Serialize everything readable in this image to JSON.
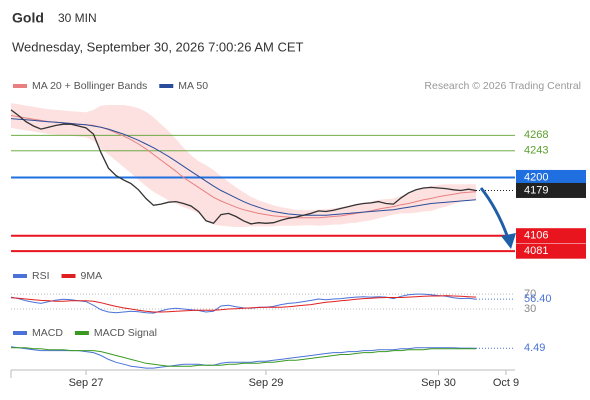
{
  "header": {
    "title": "Gold",
    "interval": "30 MIN",
    "timestamp": "Wednesday, September 30, 2026 7:00:26 AM CET"
  },
  "chart_data": [
    {
      "type": "line",
      "source": "Research © 2026 Trading Central",
      "ylim": [
        4070,
        4325
      ],
      "values": [
        4309,
        4300,
        4290,
        4283,
        4278,
        4281,
        4284,
        4286,
        4286,
        4283,
        4280,
        4270,
        4240,
        4215,
        4203,
        4196,
        4190,
        4180,
        4166,
        4155,
        4157,
        4160,
        4161,
        4158,
        4154,
        4145,
        4130,
        4126,
        4140,
        4142,
        4137,
        4130,
        4125,
        4127,
        4126,
        4127,
        4131,
        4134,
        4136,
        4139,
        4142,
        4146,
        4145,
        4147,
        4150,
        4153,
        4156,
        4158,
        4159,
        4161,
        4158,
        4157,
        4167,
        4175,
        4180,
        4183,
        4184,
        4183,
        4182,
        4180,
        4179,
        4181,
        4179,
        null,
        null,
        null,
        null
      ],
      "series": [
        {
          "name": "MA 20 + Bollinger Bands",
          "color": "#e88080",
          "band_color": "#fde0e0",
          "values": [
            4300,
            4298,
            4296,
            4294,
            4292,
            4290,
            4289,
            4288,
            4287,
            4286,
            4285,
            4284,
            4281,
            4277,
            4272,
            4267,
            4261,
            4254,
            4246,
            4237,
            4228,
            4219,
            4210,
            4200,
            4192,
            4184,
            4176,
            4168,
            4162,
            4157,
            4152,
            4148,
            4145,
            4142,
            4140,
            4138,
            4137,
            4136,
            4135,
            4135,
            4135,
            4135,
            4136,
            4137,
            4138,
            4140,
            4142,
            4144,
            4146,
            4149,
            4151,
            4153,
            4156,
            4158,
            4161,
            4164,
            4166,
            4169,
            4171,
            4173,
            4175,
            4176,
            4177,
            null,
            null,
            null,
            null
          ],
          "upper": [
            4320,
            4318,
            4316,
            4314,
            4312,
            4310,
            4309,
            4308,
            4307,
            4306,
            4305,
            4309,
            4316,
            4317,
            4317,
            4317,
            4315,
            4312,
            4306,
            4297,
            4286,
            4275,
            4262,
            4248,
            4236,
            4226,
            4220,
            4212,
            4202,
            4193,
            4184,
            4176,
            4169,
            4163,
            4159,
            4155,
            4152,
            4150,
            4148,
            4147,
            4147,
            4148,
            4149,
            4150,
            4152,
            4154,
            4157,
            4159,
            4161,
            4164,
            4165,
            4166,
            4170,
            4174,
            4179,
            4183,
            4186,
            4188,
            4189,
            4189,
            4189,
            4189,
            4189,
            null,
            null,
            null,
            null
          ],
          "lower": [
            4280,
            4278,
            4276,
            4274,
            4272,
            4270,
            4269,
            4268,
            4267,
            4266,
            4265,
            4259,
            4246,
            4237,
            4227,
            4217,
            4207,
            4196,
            4186,
            4177,
            4170,
            4163,
            4158,
            4152,
            4148,
            4142,
            4132,
            4124,
            4122,
            4121,
            4120,
            4120,
            4121,
            4121,
            4121,
            4121,
            4122,
            4122,
            4122,
            4123,
            4123,
            4122,
            4123,
            4124,
            4124,
            4126,
            4127,
            4129,
            4131,
            4134,
            4137,
            4140,
            4142,
            4142,
            4143,
            4145,
            4146,
            4150,
            4153,
            4157,
            4161,
            4163,
            4165,
            null,
            null,
            null,
            null
          ]
        },
        {
          "name": "MA 50",
          "color": "#2a4d9b",
          "values": [
            4295,
            4294,
            4293,
            4292,
            4291,
            4290,
            4289,
            4288,
            4287,
            4286,
            4285,
            4283,
            4281,
            4278,
            4274,
            4270,
            4265,
            4260,
            4254,
            4248,
            4241,
            4234,
            4226,
            4218,
            4210,
            4202,
            4194,
            4186,
            4179,
            4173,
            4167,
            4161,
            4156,
            4152,
            4148,
            4145,
            4143,
            4141,
            4140,
            4139,
            4139,
            4139,
            4139,
            4140,
            4141,
            4142,
            4143,
            4144,
            4145,
            4146,
            4147,
            4148,
            4150,
            4152,
            4154,
            4156,
            4158,
            4159,
            4160,
            4161,
            4162,
            4163,
            4164,
            null,
            null,
            null,
            null
          ]
        }
      ],
      "levels": [
        {
          "value": 4268,
          "color": "#5aa02c",
          "boxed": false
        },
        {
          "value": 4243,
          "color": "#5aa02c",
          "boxed": false
        },
        {
          "value": 4200,
          "color": "#1f6fe0",
          "boxed": true
        },
        {
          "value": 4179,
          "color": "#222222",
          "boxed": true
        },
        {
          "value": 4106,
          "color": "#e8141e",
          "boxed": true
        },
        {
          "value": 4081,
          "color": "#e8141e",
          "boxed": true
        }
      ]
    },
    {
      "type": "line",
      "ylim": [
        6,
        89
      ],
      "yticks": [
        30,
        70
      ],
      "current": {
        "value": 56.4,
        "label": "56.40"
      },
      "series": [
        {
          "name": "RSI",
          "color": "#4a72d8",
          "values": [
            62,
            58,
            52,
            48,
            45,
            50,
            54,
            56,
            55,
            52,
            50,
            40,
            28,
            22,
            20,
            22,
            24,
            23,
            20,
            19,
            25,
            30,
            32,
            30,
            28,
            26,
            22,
            24,
            38,
            40,
            36,
            33,
            32,
            35,
            35,
            37,
            42,
            45,
            47,
            50,
            53,
            57,
            55,
            57,
            58,
            60,
            62,
            63,
            62,
            63,
            62,
            58,
            64,
            68,
            70,
            70,
            68,
            66,
            64,
            60,
            58,
            59,
            56.4,
            null,
            null,
            null,
            null
          ]
        },
        {
          "name": "9MA",
          "color": "#e02020",
          "values": [
            60,
            59,
            57,
            55,
            53,
            52,
            51,
            51,
            52,
            52,
            52,
            51,
            47,
            42,
            37,
            33,
            30,
            27,
            24,
            22,
            22,
            23,
            24,
            25,
            26,
            27,
            27,
            27,
            28,
            30,
            31,
            32,
            33,
            34,
            35,
            35,
            35,
            36,
            38,
            40,
            42,
            45,
            48,
            50,
            52,
            54,
            56,
            58,
            59,
            60,
            61,
            61,
            61,
            62,
            63,
            64,
            65,
            65,
            66,
            65,
            64,
            63,
            62,
            null,
            null,
            null,
            null
          ]
        }
      ]
    },
    {
      "type": "line",
      "ylim": [
        -20,
        15
      ],
      "current": 4.49,
      "categories": [
        null,
        null,
        null,
        null,
        null,
        null,
        null,
        null,
        null,
        null,
        "Sep 27",
        null,
        null,
        null,
        null,
        null,
        null,
        null,
        null,
        null,
        null,
        null,
        null,
        null,
        null,
        null,
        null,
        null,
        null,
        null,
        null,
        null,
        null,
        null,
        "Sep 29",
        null,
        null,
        null,
        null,
        null,
        null,
        null,
        null,
        null,
        null,
        null,
        null,
        null,
        null,
        null,
        null,
        null,
        null,
        null,
        null,
        null,
        null,
        "Sep 30",
        null,
        null,
        null,
        null,
        null,
        null,
        null,
        null,
        "Oct 9"
      ],
      "series": [
        {
          "name": "MACD",
          "color": "#4a72d8",
          "values": [
            6,
            5,
            4,
            3,
            2,
            2,
            2,
            2,
            2,
            2,
            1,
            0,
            -3,
            -7,
            -10,
            -12,
            -14,
            -15,
            -16,
            -16,
            -15,
            -14,
            -13,
            -12,
            -12,
            -12,
            -13,
            -13,
            -11,
            -10,
            -10,
            -10,
            -10,
            -9,
            -9,
            -8,
            -7,
            -6,
            -5,
            -4,
            -3,
            -2,
            -1,
            0,
            0,
            1,
            1,
            2,
            2,
            3,
            3,
            3,
            4,
            4,
            5,
            5,
            5,
            5,
            5,
            5,
            4.6,
            4.6,
            4.49,
            null,
            null,
            null,
            null
          ]
        },
        {
          "name": "MACD Signal",
          "color": "#3a9a20",
          "values": [
            5,
            5,
            5,
            4,
            4,
            3,
            3,
            3,
            2,
            2,
            2,
            2,
            1,
            -1,
            -3,
            -5,
            -7,
            -9,
            -11,
            -12,
            -13,
            -14,
            -14,
            -14,
            -14,
            -13,
            -13,
            -13,
            -13,
            -12,
            -12,
            -11,
            -11,
            -11,
            -10,
            -10,
            -9,
            -8,
            -8,
            -7,
            -6,
            -5,
            -4,
            -3,
            -2,
            -2,
            -1,
            0,
            0,
            1,
            1,
            2,
            2,
            3,
            3,
            3,
            4,
            4,
            4,
            4,
            4,
            4,
            4,
            null,
            null,
            null,
            null
          ]
        }
      ]
    }
  ]
}
